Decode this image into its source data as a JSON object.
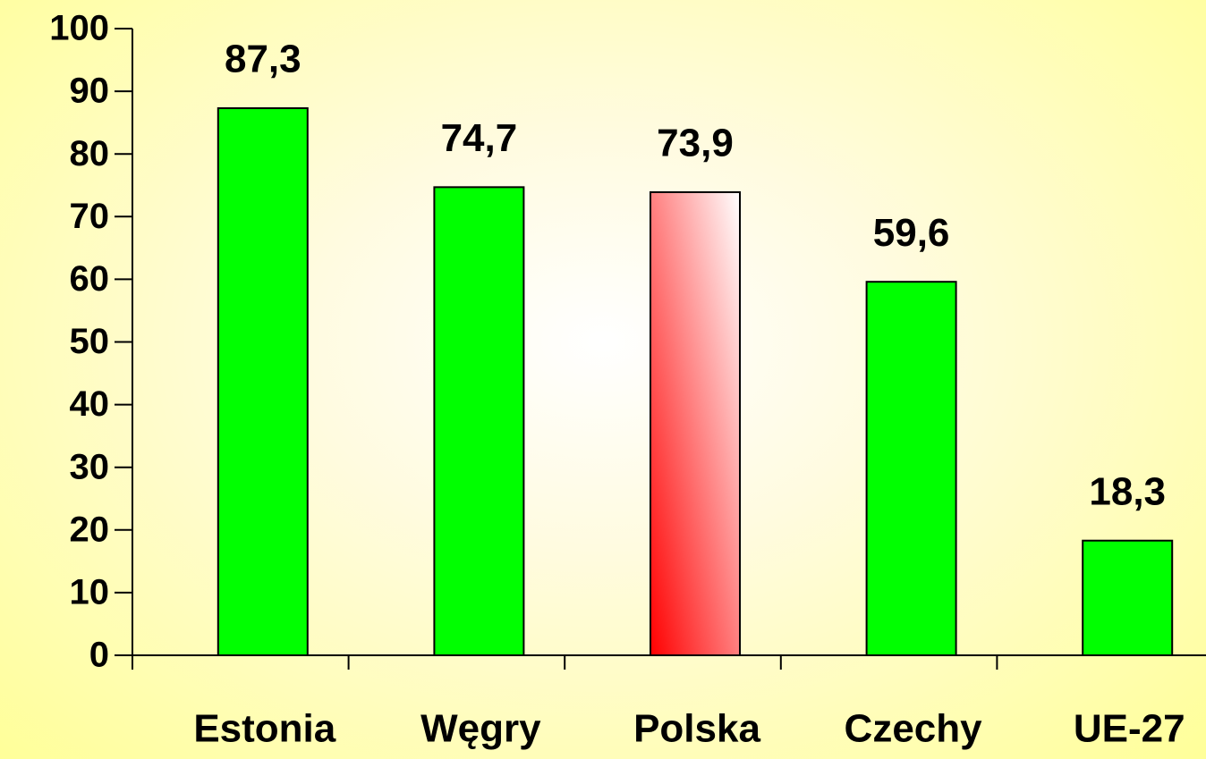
{
  "chart_data": {
    "type": "bar",
    "categories": [
      "Estonia",
      "Węgry",
      "Polska",
      "Czechy",
      "UE-27"
    ],
    "values": [
      87.3,
      74.7,
      73.9,
      59.6,
      18.3
    ],
    "value_labels": [
      "87,3",
      "74,7",
      "73,9",
      "59,6",
      "18,3"
    ],
    "colors": [
      "#00ff00",
      "#00ff00",
      {
        "gradient": [
          "#ff0000",
          "#ffffff"
        ]
      },
      "#00ff00",
      "#00ff00"
    ],
    "ylim": [
      0,
      100
    ],
    "yticks": [
      0,
      10,
      20,
      30,
      40,
      50,
      60,
      70,
      80,
      90,
      100
    ],
    "grid": false
  }
}
